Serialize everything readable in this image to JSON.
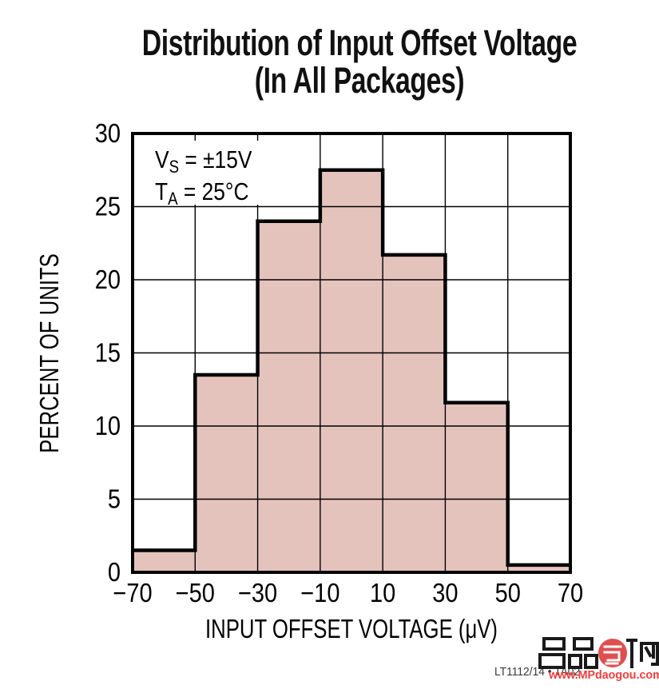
{
  "title": {
    "line1": "Distribution of Input Offset Voltage",
    "line2": "(In All Packages)"
  },
  "annotation": {
    "line1": {
      "base": "V",
      "sub": "S",
      "rest": " = ±15V"
    },
    "line2": {
      "base": "T",
      "sub": "A",
      "rest": " = 25°C"
    }
  },
  "chart_data": {
    "type": "bar",
    "title": "Distribution of Input Offset Voltage (In All Packages)",
    "xlabel": "INPUT OFFSET VOLTAGE (μV)",
    "ylabel": "PERCENT OF UNITS",
    "xlim": [
      -70,
      70
    ],
    "ylim": [
      0,
      30
    ],
    "grid": true,
    "bin_width_uV": 20,
    "x_ticks": [
      -70,
      -50,
      -30,
      -10,
      10,
      30,
      50,
      70
    ],
    "x_tick_labels": [
      "−70",
      "−50",
      "−30",
      "−10",
      "10",
      "30",
      "50",
      "70"
    ],
    "y_ticks": [
      0,
      5,
      10,
      15,
      20,
      25,
      30
    ],
    "y_tick_labels": [
      "0",
      "5",
      "10",
      "15",
      "20",
      "25",
      "30"
    ],
    "bins": [
      {
        "range": [
          -70,
          -50
        ],
        "value": 1.5
      },
      {
        "range": [
          -50,
          -30
        ],
        "value": 13.5
      },
      {
        "range": [
          -30,
          -10
        ],
        "value": 24.0
      },
      {
        "range": [
          -10,
          10
        ],
        "value": 27.5
      },
      {
        "range": [
          10,
          30
        ],
        "value": 21.7
      },
      {
        "range": [
          30,
          50
        ],
        "value": 11.6
      },
      {
        "range": [
          50,
          70
        ],
        "value": 0.5
      }
    ],
    "bar_fill_color": "#e5c3bd",
    "outline_color": "#000000",
    "grid_color": "#000000"
  },
  "footer": {
    "trace_code": "LT1112/14 • TA02"
  },
  "watermark": {
    "logo_text": "名品导购",
    "url": "www.MPdaogou.com",
    "circle_color": "#e04f4f",
    "url_color": "#f23d3d",
    "glyph_color": "#1a1a1a"
  }
}
